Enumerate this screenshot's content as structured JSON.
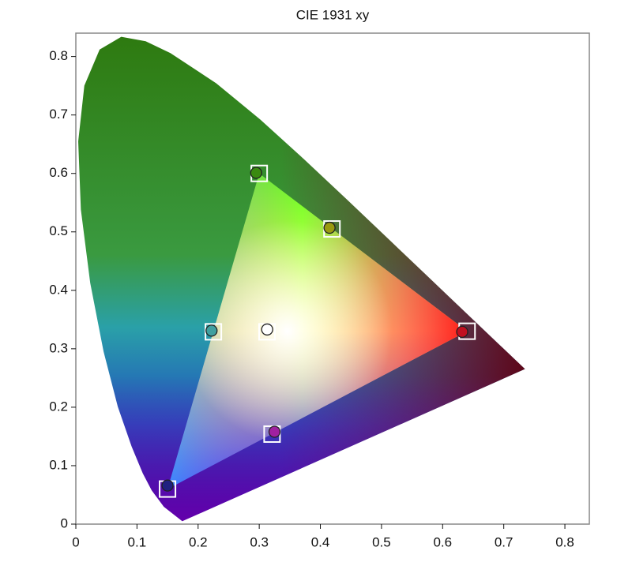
{
  "chart_data": {
    "type": "chromaticity",
    "title": "CIE 1931 xy",
    "xlim": [
      0,
      0.84
    ],
    "ylim": [
      0,
      0.84
    ],
    "xticks": [
      0,
      0.1,
      0.2,
      0.3,
      0.4,
      0.5,
      0.6,
      0.7,
      0.8
    ],
    "yticks": [
      0,
      0.1,
      0.2,
      0.3,
      0.4,
      0.5,
      0.6,
      0.7,
      0.8
    ],
    "locus": {
      "x": [
        0.1741,
        0.144,
        0.1241,
        0.1096,
        0.0913,
        0.0687,
        0.0454,
        0.0235,
        0.0082,
        0.0039,
        0.0139,
        0.0389,
        0.0743,
        0.1142,
        0.1547,
        0.2296,
        0.3016,
        0.3731,
        0.4441,
        0.5125,
        0.5752,
        0.627,
        0.6915,
        0.7347
      ],
      "y": [
        0.005,
        0.0297,
        0.0578,
        0.0868,
        0.1327,
        0.2007,
        0.295,
        0.4127,
        0.5384,
        0.6548,
        0.7502,
        0.812,
        0.8338,
        0.8262,
        0.8059,
        0.7543,
        0.6923,
        0.6245,
        0.5547,
        0.4866,
        0.4242,
        0.3725,
        0.3083,
        0.2653
      ]
    },
    "series": [
      {
        "marker": "square",
        "color": "#ffffff",
        "x": [
          0.64,
          0.3,
          0.15,
          0.3127,
          0.225,
          0.321,
          0.419
        ],
        "y": [
          0.33,
          0.6,
          0.06,
          0.329,
          0.329,
          0.154,
          0.505
        ]
      },
      {
        "marker": "circle",
        "colors": [
          "#c01020",
          "#3a8a10",
          "#202080",
          "#ffffff",
          "#40a0a0",
          "#a020a0",
          "#9a9a10"
        ],
        "x": [
          0.632,
          0.295,
          0.15,
          0.313,
          0.222,
          0.325,
          0.415
        ],
        "y": [
          0.329,
          0.601,
          0.066,
          0.333,
          0.331,
          0.158,
          0.507
        ]
      }
    ]
  }
}
